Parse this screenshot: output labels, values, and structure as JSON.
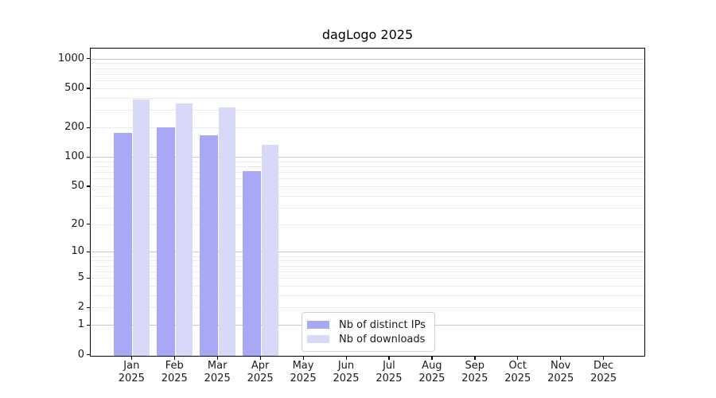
{
  "chart_data": {
    "type": "bar",
    "title": "dagLogo 2025",
    "categories": [
      "Jan 2025",
      "Feb 2025",
      "Mar 2025",
      "Apr 2025",
      "May 2025",
      "Jun 2025",
      "Jul 2025",
      "Aug 2025",
      "Sep 2025",
      "Oct 2025",
      "Nov 2025",
      "Dec 2025"
    ],
    "series": [
      {
        "name": "Nb of distinct IPs",
        "color": "#a8a8f6",
        "values": [
          175,
          200,
          167,
          72,
          null,
          null,
          null,
          null,
          null,
          null,
          null,
          null
        ]
      },
      {
        "name": "Nb of downloads",
        "color": "#d8d8f8",
        "values": [
          382,
          350,
          317,
          134,
          null,
          null,
          null,
          null,
          null,
          null,
          null,
          null
        ]
      }
    ],
    "yscale": "log1p",
    "ylim": [
      0,
      1300
    ],
    "yticks": [
      1000,
      500,
      200,
      100,
      50,
      20,
      10,
      5,
      2,
      1,
      0
    ],
    "major_grid_values": [
      1,
      10,
      100,
      1000
    ],
    "grid": "horizontal, major + minor (log decades)",
    "legend_position": "inside-bottom-center",
    "colors": {
      "major_grid": "#c8c8c8",
      "minor_grid": "#ececec",
      "axis": "#000000",
      "text": "#1a1a1a"
    }
  }
}
